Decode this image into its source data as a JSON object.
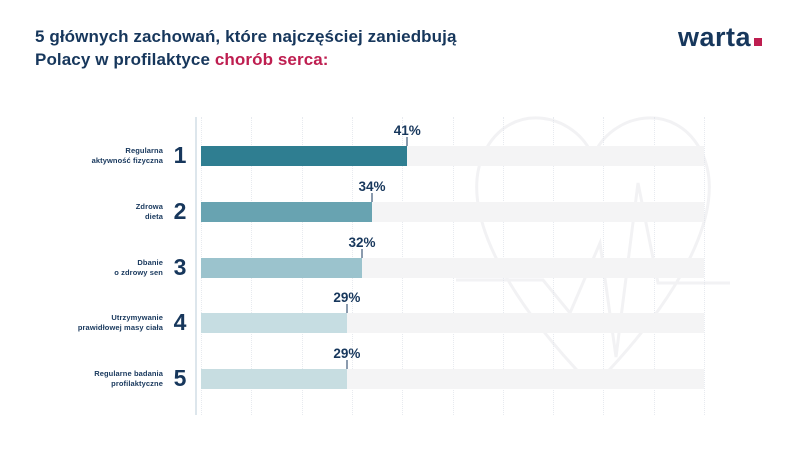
{
  "header": {
    "title_line1": "5 głównych zachowań, które najczęściej zaniedbują",
    "title_line2_prefix": "Polacy w profilaktyce ",
    "title_line2_highlight": "chorób serca:",
    "logo_text": "warta"
  },
  "colors": {
    "navy_text": "#17375c",
    "highlight_red": "#be1e50",
    "track_gray": "#f4f4f5",
    "axis_line": "#dde6ec",
    "watermark_stroke": "#f2f2f4"
  },
  "chart_data": {
    "type": "bar",
    "orientation": "horizontal",
    "title": "5 głównych zachowań, które najczęściej zaniedbują Polacy w profilaktyce chorób serca:",
    "xlabel": "",
    "ylabel": "",
    "xlim": [
      0,
      100
    ],
    "grid": "vertical-dotted",
    "gridline_step_pct": 10,
    "unit": "%",
    "categories": [
      "Regularna aktywność fizyczna",
      "Zdrowa dieta",
      "Dbanie o zdrowy sen",
      "Utrzymywanie prawidłowej masy ciała",
      "Regularne badania profilaktyczne"
    ],
    "values": [
      41,
      34,
      32,
      29,
      29
    ],
    "rows": [
      {
        "rank": "1",
        "label_line1": "Regularna",
        "label_line2": "aktywność fizyczna",
        "value": 41,
        "value_label": "41%",
        "color": "#2f7e91"
      },
      {
        "rank": "2",
        "label_line1": "Zdrowa",
        "label_line2": "dieta",
        "value": 34,
        "value_label": "34%",
        "color": "#68a3b1"
      },
      {
        "rank": "3",
        "label_line1": "Dbanie",
        "label_line2": "o zdrowy sen",
        "value": 32,
        "value_label": "32%",
        "color": "#9bc3cd"
      },
      {
        "rank": "4",
        "label_line1": "Utrzymywanie",
        "label_line2": "prawidłowej masy ciała",
        "value": 29,
        "value_label": "29%",
        "color": "#c6dde2"
      },
      {
        "rank": "5",
        "label_line1": "Regularne badania",
        "label_line2": "profilaktyczne",
        "value": 29,
        "value_label": "29%",
        "color": "#c7dde1"
      }
    ]
  }
}
